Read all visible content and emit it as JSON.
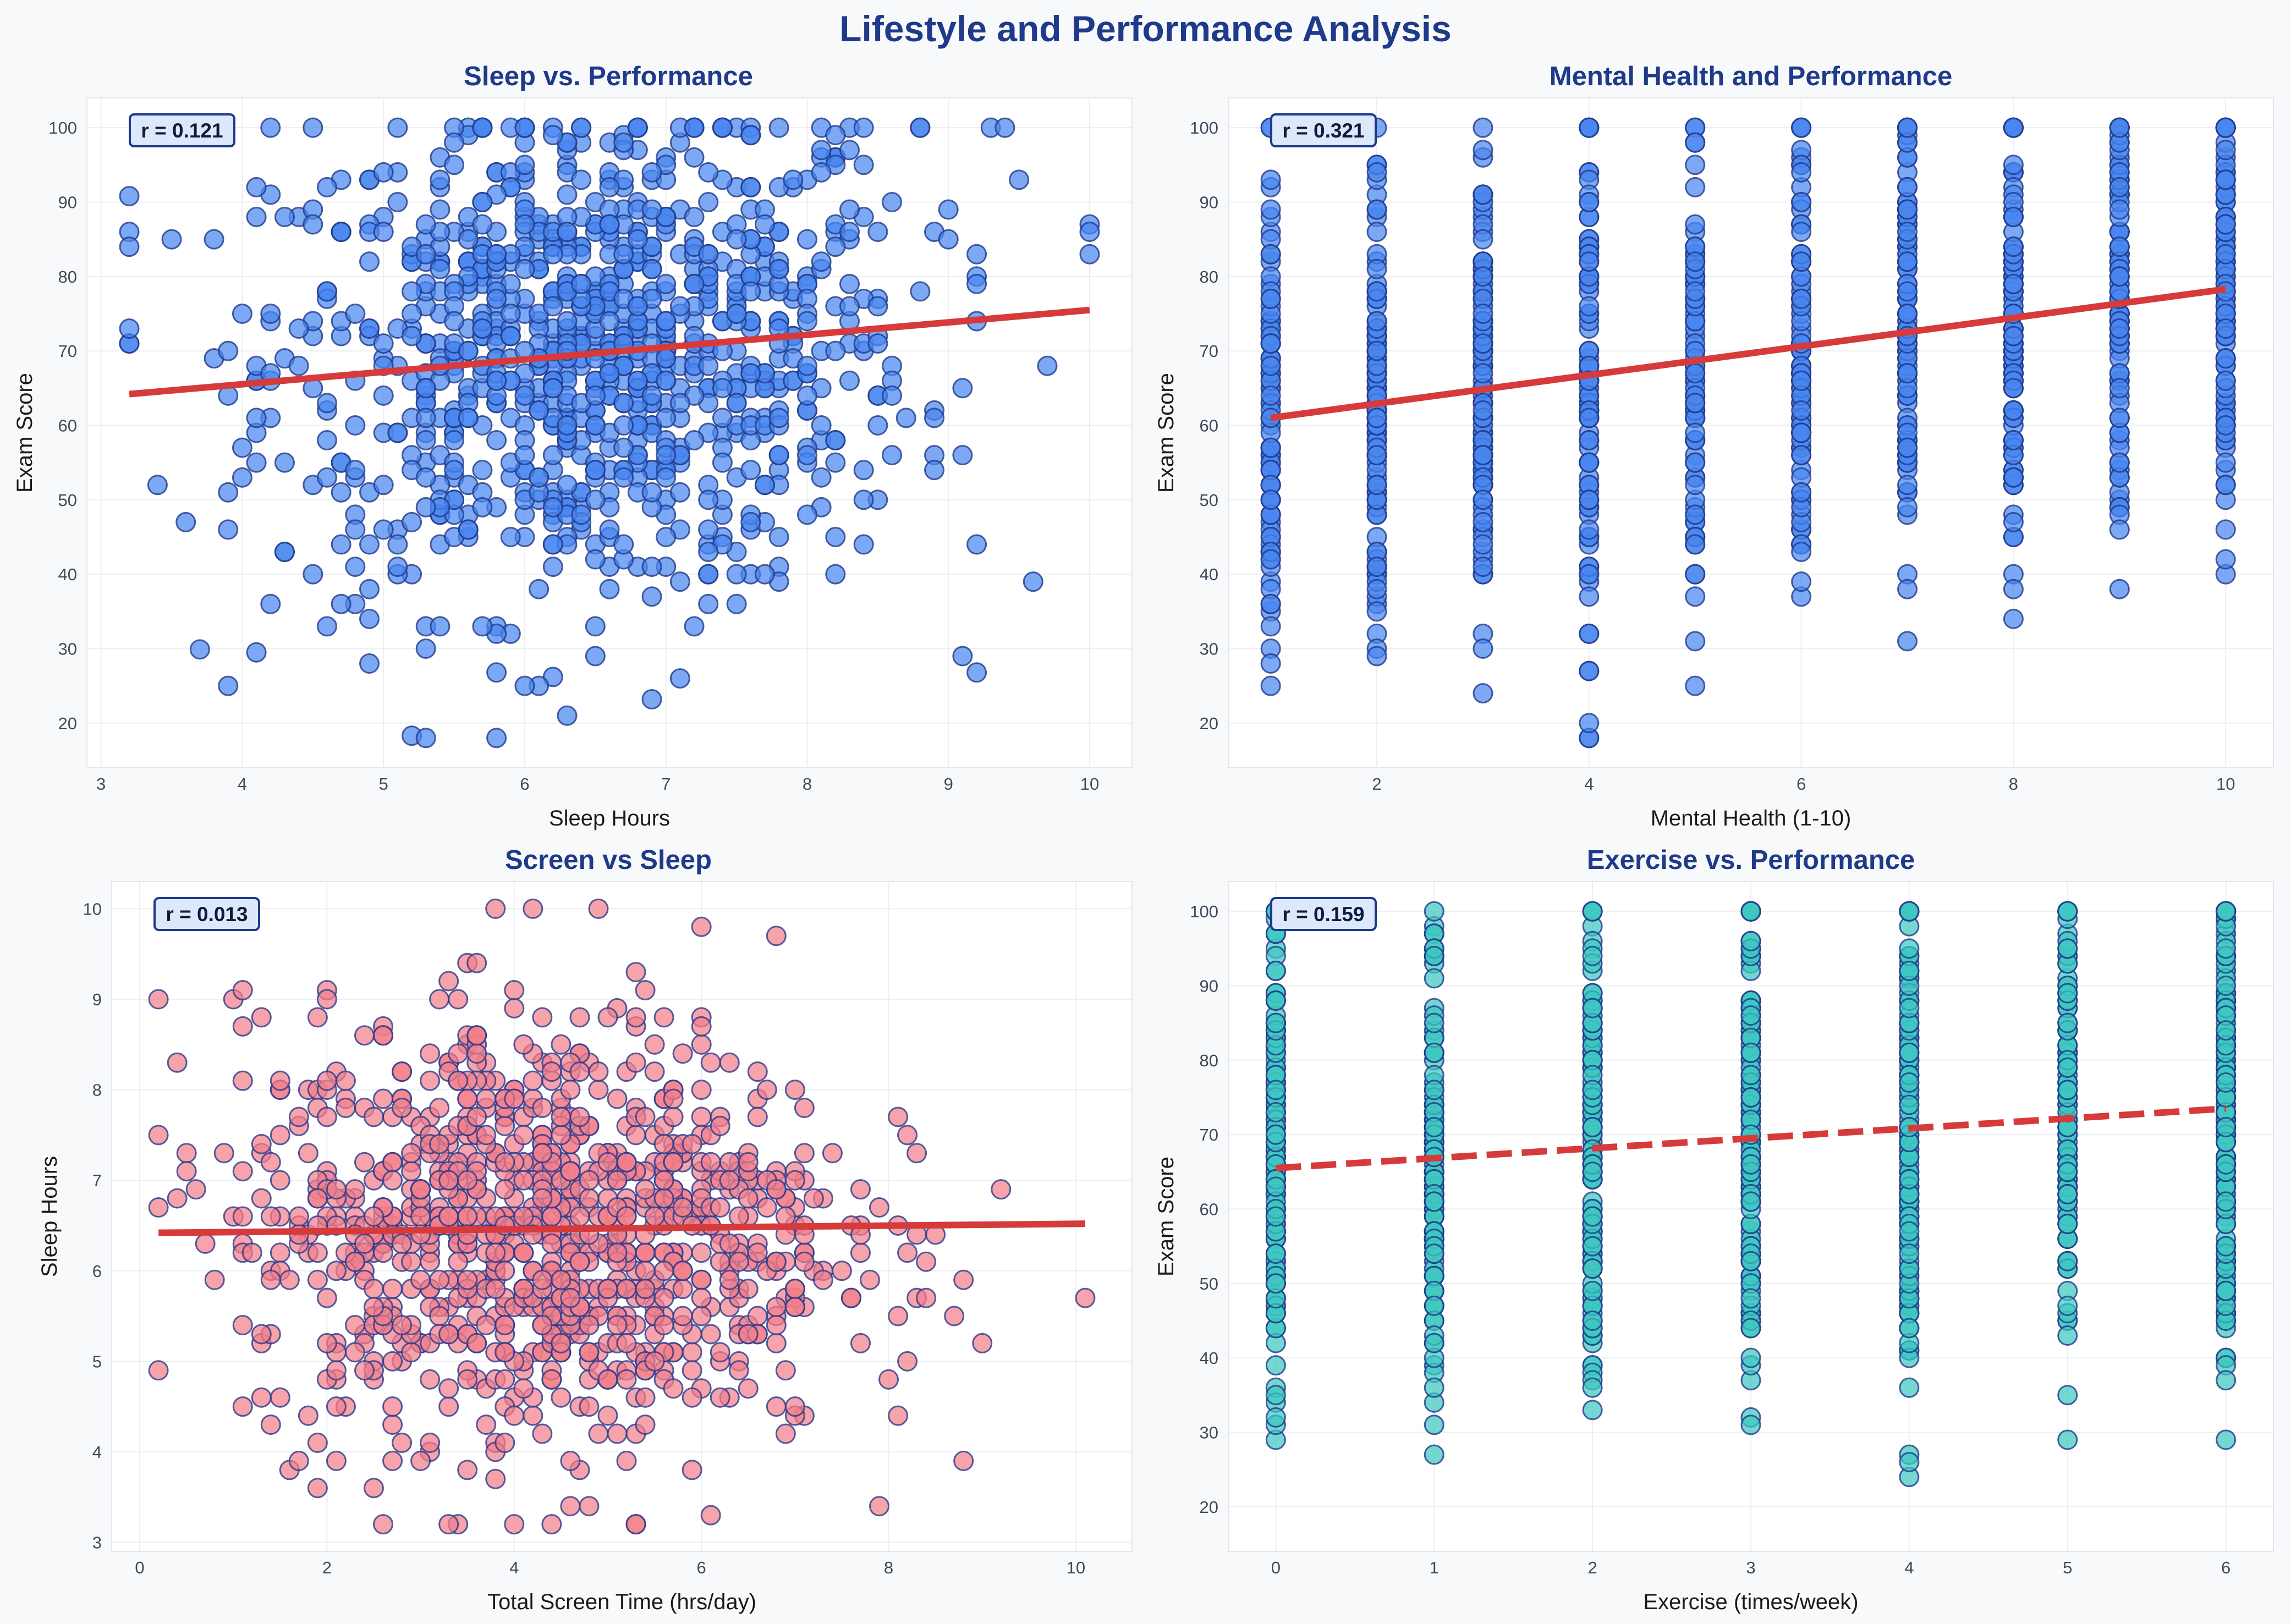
{
  "title": "Lifestyle and Performance Analysis",
  "colors": {
    "title": "#1f3a8a",
    "trend": "#d63a3a",
    "blue": "#4a86f0",
    "pink": "#f27f8a",
    "teal": "#3ec7c0"
  },
  "chart_data": [
    {
      "type": "scatter",
      "title": "Sleep vs. Performance",
      "xlabel": "Sleep Hours",
      "ylabel": "Exam Score",
      "annotation": "r = 0.121",
      "xlim": [
        2.9,
        10.3
      ],
      "ylim": [
        14,
        104
      ],
      "xticks": [
        3,
        4,
        5,
        6,
        7,
        8,
        9,
        10
      ],
      "yticks": [
        20,
        30,
        40,
        50,
        60,
        70,
        80,
        90,
        100
      ],
      "series": [
        {
          "color": "#4a86f0",
          "edge": "#1f3a8a",
          "x_distribution": {
            "mean": 6.47,
            "sd": 1.2
          },
          "y_distribution": {
            "mean": 69.6,
            "sd": 16.8
          },
          "points": [
            [
              5.2,
              18.3
            ],
            [
              6.9,
              23.2
            ],
            [
              9.2,
              26.8
            ],
            [
              3.7,
              29.9
            ],
            [
              4.1,
              29.5
            ],
            [
              4.9,
              28.0
            ],
            [
              6.2,
              26.2
            ],
            [
              5.8,
              26.8
            ],
            [
              3.2,
              90.8
            ],
            [
              4.2,
              100
            ],
            [
              10,
              87
            ],
            [
              10,
              83
            ],
            [
              9.3,
              100
            ],
            [
              9.4,
              100
            ]
          ],
          "count": 1000
        }
      ],
      "trend": {
        "style": "solid",
        "x": [
          3.2,
          10.0
        ],
        "y": [
          64.2,
          75.5
        ]
      },
      "grid": true
    },
    {
      "type": "scatter",
      "title": "Mental Health and Performance",
      "xlabel": "Mental Health (1-10)",
      "ylabel": "Exam Score",
      "annotation": "r = 0.321",
      "xlim": [
        0.6,
        10.45
      ],
      "ylim": [
        14,
        104
      ],
      "xticks": [
        2,
        4,
        6,
        8,
        10
      ],
      "yticks": [
        20,
        30,
        40,
        50,
        60,
        70,
        80,
        90,
        100
      ],
      "categories": [
        1,
        2,
        3,
        4,
        5,
        6,
        7,
        8,
        9,
        10
      ],
      "series": [
        {
          "color": "#4a86f0",
          "edge": "#1f3a8a",
          "count": 1000
        }
      ],
      "trend": {
        "style": "solid",
        "x": [
          1,
          10
        ],
        "y": [
          61.0,
          78.3
        ]
      },
      "grid": true
    },
    {
      "type": "scatter",
      "title": "Screen vs Sleep",
      "xlabel": "Total Screen Time (hrs/day)",
      "ylabel": "Sleep Hours",
      "annotation": "r = 0.013",
      "xlim": [
        -0.3,
        10.6
      ],
      "ylim": [
        2.9,
        10.3
      ],
      "xticks": [
        0,
        2,
        4,
        6,
        8,
        10
      ],
      "yticks": [
        3,
        4,
        5,
        6,
        7,
        8,
        9,
        10
      ],
      "series": [
        {
          "color": "#f27f8a",
          "edge": "#2a3a8a",
          "x_distribution": {
            "mean": 4.3,
            "sd": 1.6
          },
          "y_distribution": {
            "mean": 6.45,
            "sd": 1.2
          },
          "points": [
            [
              10.1,
              5.7
            ],
            [
              9.2,
              6.9
            ],
            [
              3.8,
              10.0
            ],
            [
              4.2,
              10.0
            ],
            [
              6.0,
              9.8
            ],
            [
              3.4,
              3.2
            ],
            [
              6.1,
              3.3
            ],
            [
              0.2,
              6.7
            ]
          ],
          "count": 1000
        }
      ],
      "trend": {
        "style": "solid",
        "x": [
          0.2,
          10.1
        ],
        "y": [
          6.42,
          6.52
        ]
      },
      "grid": true
    },
    {
      "type": "scatter",
      "title": "Exercise vs. Performance",
      "xlabel": "Exercise (times/week)",
      "ylabel": "Exam Score",
      "annotation": "r = 0.159",
      "xlim": [
        -0.3,
        6.3
      ],
      "ylim": [
        14,
        104
      ],
      "xticks": [
        0,
        1,
        2,
        3,
        4,
        5,
        6
      ],
      "yticks": [
        20,
        30,
        40,
        50,
        60,
        70,
        80,
        90,
        100
      ],
      "categories": [
        0,
        1,
        2,
        3,
        4,
        5,
        6
      ],
      "series": [
        {
          "color": "#3ec7c0",
          "edge": "#1f3a8a",
          "count": 1000
        }
      ],
      "trend": {
        "style": "dashed",
        "x": [
          0,
          6
        ],
        "y": [
          65.5,
          73.5
        ]
      },
      "grid": true
    }
  ]
}
